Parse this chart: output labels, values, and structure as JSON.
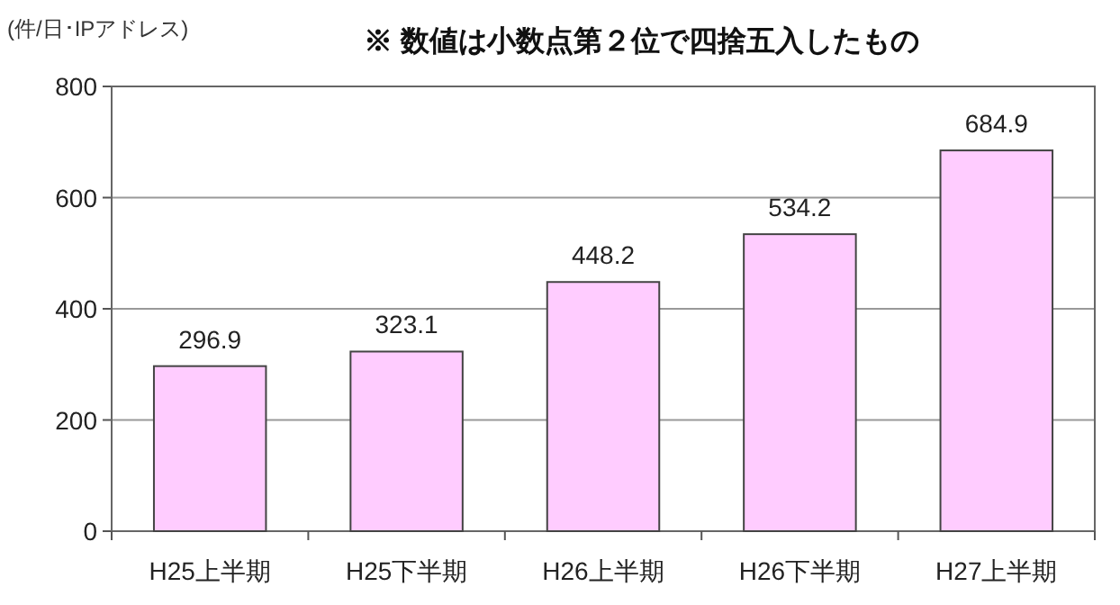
{
  "chart_data": {
    "type": "bar",
    "ylabel": "(件/日･IPアドレス)",
    "annotations": [
      "※ 数値は小数点第２位で四捨五入したもの"
    ],
    "categories": [
      "H25上半期",
      "H25下半期",
      "H26上半期",
      "H26下半期",
      "H27上半期"
    ],
    "values": [
      296.9,
      323.1,
      448.2,
      534.2,
      684.9
    ],
    "color": "#ffccff",
    "ylim": [
      0,
      800
    ],
    "yticks": [
      0,
      200,
      400,
      600,
      800
    ],
    "grid": "y",
    "data_labels": true
  }
}
